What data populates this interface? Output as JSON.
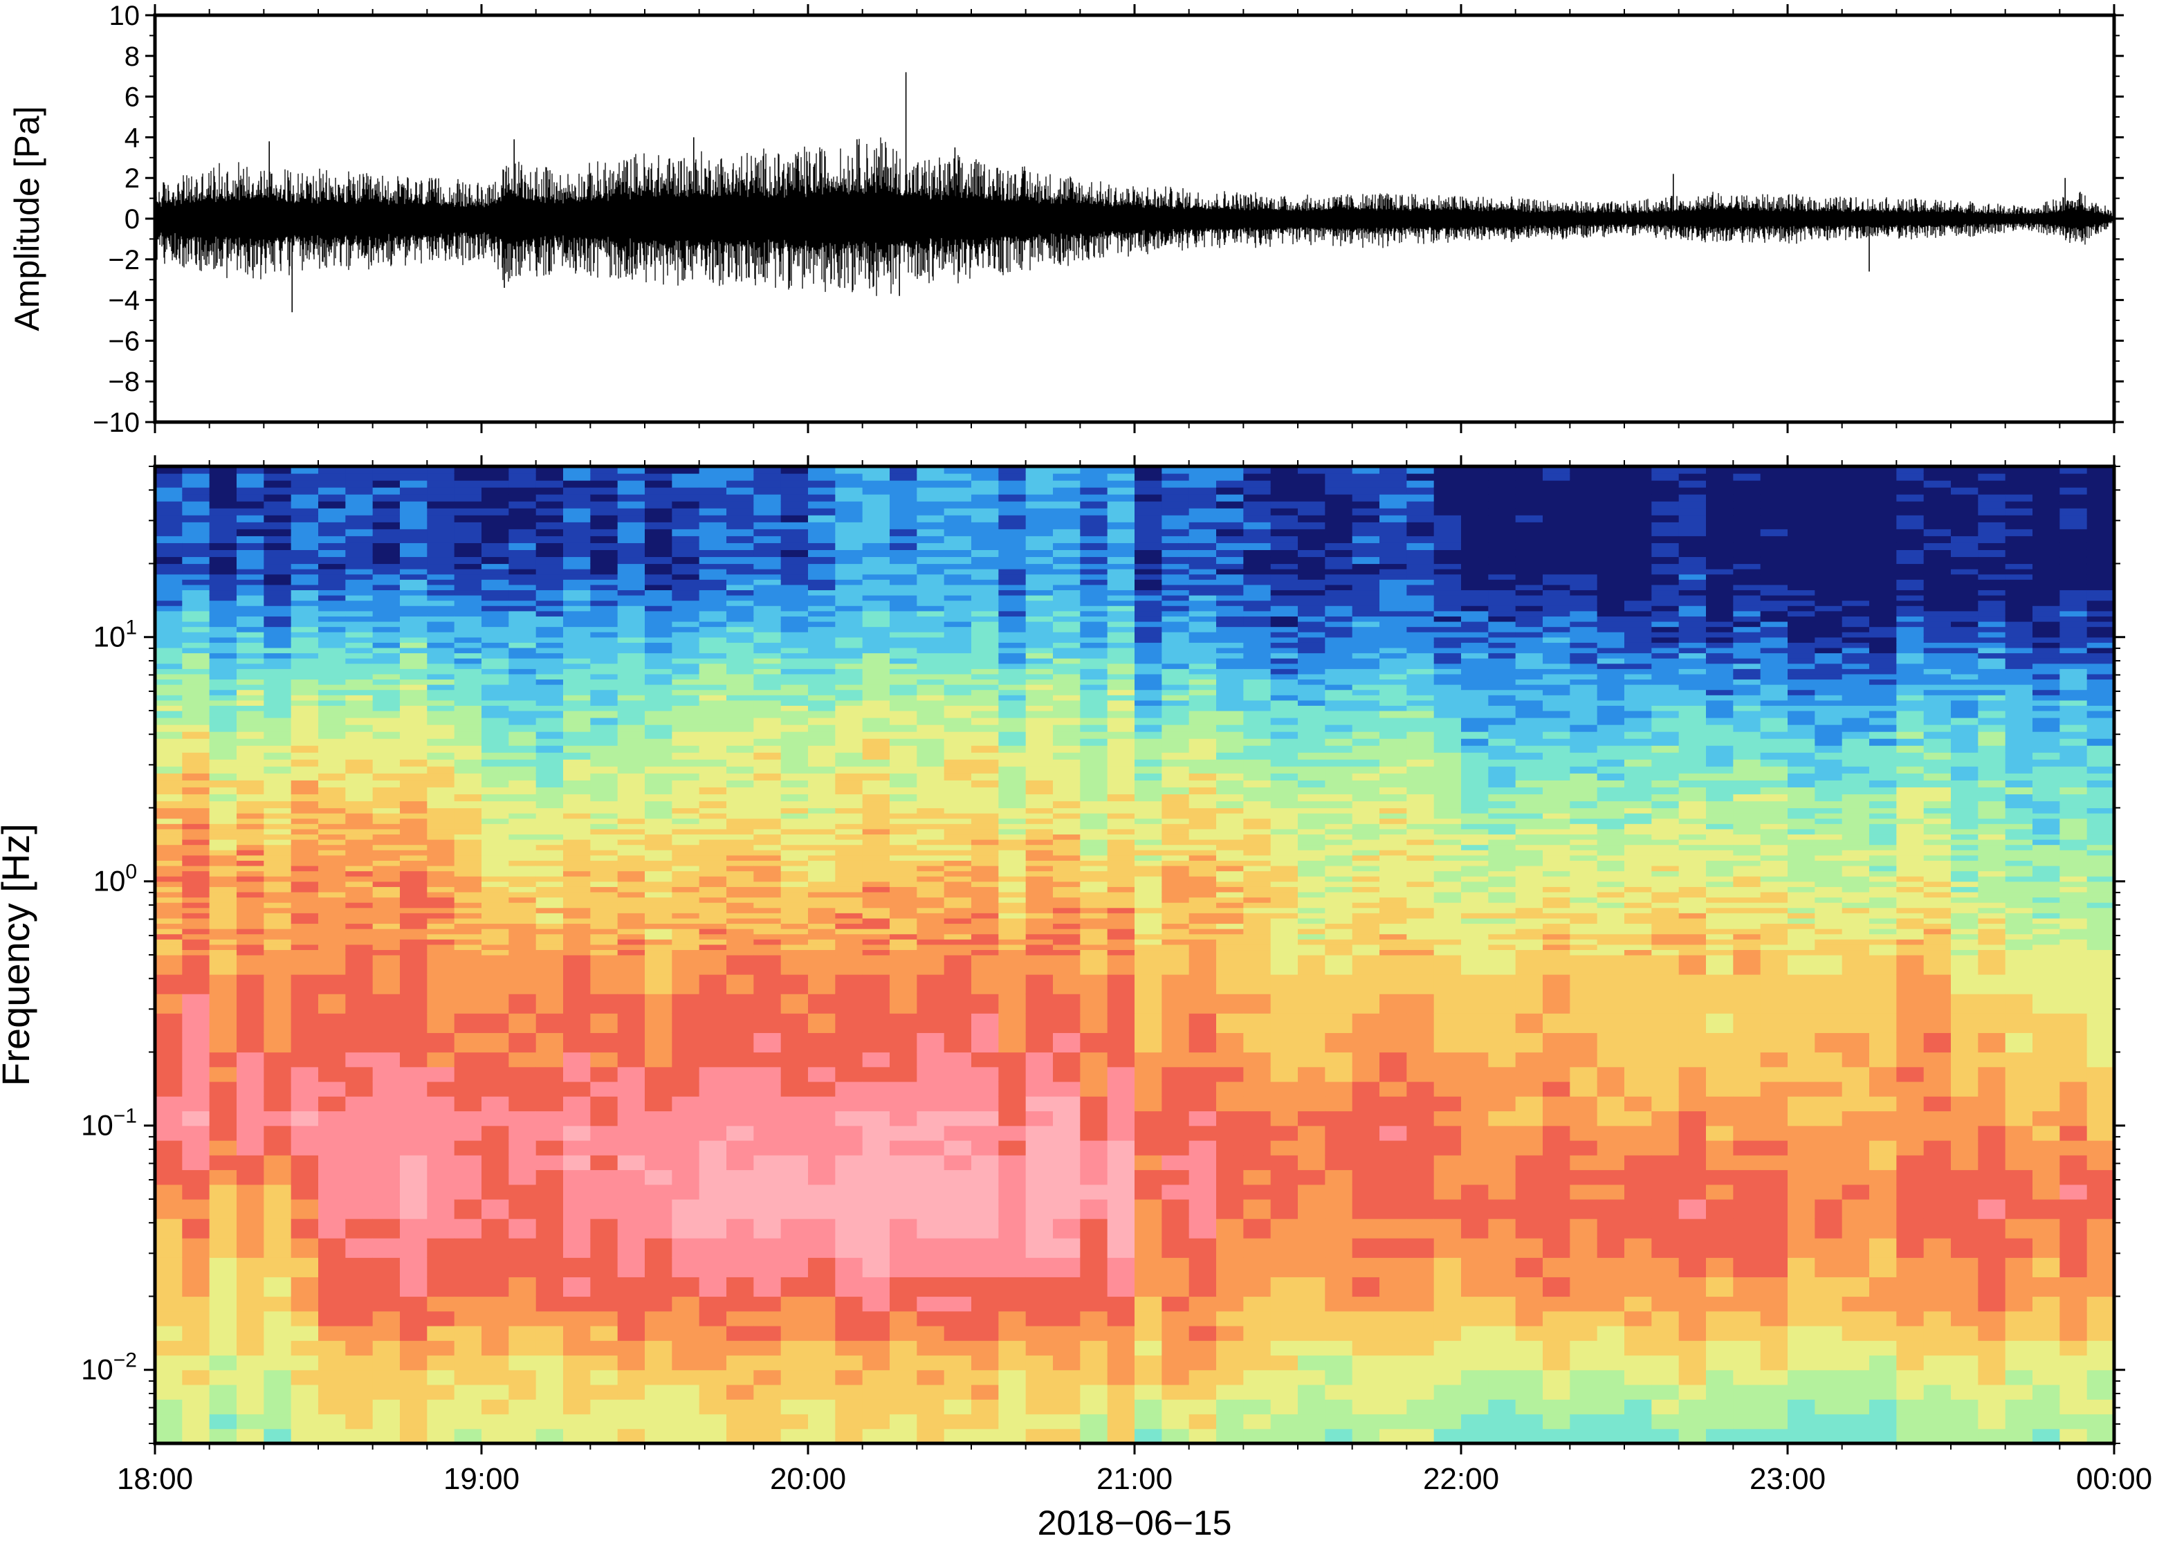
{
  "figure_title": "",
  "chart_data": [
    {
      "type": "line",
      "panel": "waveform",
      "ylabel": "Amplitude [Pa]",
      "xlabel": "",
      "ylim": [
        -10,
        10
      ],
      "y_ticks": [
        -10,
        -8,
        -6,
        -4,
        -2,
        0,
        2,
        4,
        6,
        8,
        10
      ],
      "y_tick_labels": [
        "−10",
        "−8",
        "−6",
        "−4",
        "−2",
        "0",
        "2",
        "4",
        "6",
        "8",
        "10"
      ],
      "x_range": [
        "18:00",
        "00:00"
      ],
      "x_ticks": [
        "18:00",
        "19:00",
        "20:00",
        "21:00",
        "22:00",
        "23:00",
        "00:00"
      ],
      "grid": false,
      "envelope": {
        "x_hours": [
          18.0,
          18.25,
          18.5,
          18.75,
          19.0,
          19.1,
          19.25,
          19.5,
          19.75,
          20.0,
          20.25,
          20.3,
          20.5,
          20.75,
          21.0,
          21.25,
          21.5,
          21.75,
          22.0,
          22.25,
          22.5,
          22.75,
          23.0,
          23.25,
          23.5,
          23.75,
          23.9,
          24.0
        ],
        "max": [
          1.5,
          2.5,
          2.0,
          1.8,
          1.5,
          2.5,
          2.0,
          2.8,
          2.8,
          3.0,
          3.5,
          2.5,
          2.6,
          2.0,
          1.4,
          1.2,
          1.0,
          1.1,
          1.0,
          0.8,
          0.7,
          1.1,
          1.0,
          0.9,
          0.8,
          0.5,
          1.2,
          0.3
        ],
        "min": [
          -1.8,
          -2.6,
          -2.2,
          -2.0,
          -1.8,
          -2.8,
          -2.2,
          -2.8,
          -2.8,
          -3.0,
          -3.2,
          -2.6,
          -2.6,
          -2.0,
          -1.5,
          -1.3,
          -1.1,
          -1.2,
          -1.0,
          -0.9,
          -0.7,
          -1.0,
          -1.0,
          -0.9,
          -0.8,
          -0.5,
          -1.2,
          -0.3
        ]
      },
      "spikes": [
        {
          "x_hour": 18.42,
          "y": -4.6
        },
        {
          "x_hour": 18.35,
          "y": 3.8
        },
        {
          "x_hour": 19.1,
          "y": 3.9
        },
        {
          "x_hour": 19.07,
          "y": -3.4
        },
        {
          "x_hour": 19.65,
          "y": 4.0
        },
        {
          "x_hour": 20.15,
          "y": 3.9
        },
        {
          "x_hour": 20.3,
          "y": 7.2
        },
        {
          "x_hour": 20.28,
          "y": -3.8
        },
        {
          "x_hour": 20.45,
          "y": 3.5
        },
        {
          "x_hour": 22.65,
          "y": 2.2
        },
        {
          "x_hour": 23.25,
          "y": -2.6
        },
        {
          "x_hour": 23.85,
          "y": 2.0
        }
      ]
    },
    {
      "type": "heatmap",
      "panel": "spectrogram",
      "ylabel": "Frequency [Hz]",
      "xlabel": "2018−06−15",
      "y_scale": "log",
      "ylim": [
        0.005,
        50
      ],
      "y_ticks": [
        0.01,
        0.1,
        1,
        10
      ],
      "y_tick_labels": [
        {
          "base": "10",
          "exp": "−2"
        },
        {
          "base": "10",
          "exp": "−1"
        },
        {
          "base": "10",
          "exp": "0"
        },
        {
          "base": "10",
          "exp": "1"
        }
      ],
      "x_range": [
        "18:00",
        "00:00"
      ],
      "x_ticks": [
        "18:00",
        "19:00",
        "20:00",
        "21:00",
        "22:00",
        "23:00",
        "00:00"
      ],
      "grid": false,
      "colormap": [
        "#12186e",
        "#1f3fb0",
        "#2c8ee6",
        "#52c4ea",
        "#7ae6cf",
        "#b4f19d",
        "#e9ef86",
        "#f8cd63",
        "#fa9a54",
        "#f06250",
        "#ff8e98",
        "#ffb0b8"
      ],
      "time_bins_hours": [
        18.0,
        18.5,
        19.0,
        19.5,
        20.0,
        20.5,
        21.0,
        21.5,
        22.0,
        22.5,
        23.0,
        23.5,
        24.0
      ],
      "freq_bins_hz": [
        0.005,
        0.01,
        0.02,
        0.05,
        0.1,
        0.2,
        0.5,
        1,
        2,
        5,
        10,
        20,
        50
      ],
      "level_index": [
        [
          5,
          6,
          7,
          8,
          10,
          9,
          8,
          8,
          7,
          5,
          3,
          1
        ],
        [
          6,
          7,
          9,
          10,
          10,
          9,
          8,
          8,
          7,
          5,
          3,
          1
        ],
        [
          6,
          7,
          9,
          10,
          10,
          9,
          8,
          7,
          6,
          4,
          3,
          1
        ],
        [
          6,
          7,
          9,
          11,
          10,
          9,
          8,
          7,
          6,
          5,
          3,
          1
        ],
        [
          6,
          7,
          9,
          11,
          10,
          9,
          8,
          7,
          6,
          5,
          3,
          2
        ],
        [
          6,
          7,
          9,
          11,
          10,
          9,
          8,
          7,
          6,
          5,
          3,
          2
        ],
        [
          5,
          7,
          8,
          9,
          9,
          8,
          7,
          7,
          6,
          4,
          2,
          1
        ],
        [
          5,
          6,
          8,
          9,
          9,
          8,
          7,
          6,
          6,
          4,
          2,
          1
        ],
        [
          4,
          6,
          8,
          9,
          8,
          8,
          7,
          6,
          5,
          3,
          2,
          0
        ],
        [
          4,
          6,
          8,
          9,
          8,
          7,
          7,
          6,
          5,
          3,
          1,
          0
        ],
        [
          4,
          6,
          8,
          9,
          8,
          8,
          7,
          6,
          5,
          3,
          1,
          0
        ],
        [
          5,
          6,
          8,
          9,
          8,
          7,
          6,
          5,
          4,
          3,
          1,
          0
        ]
      ]
    }
  ]
}
